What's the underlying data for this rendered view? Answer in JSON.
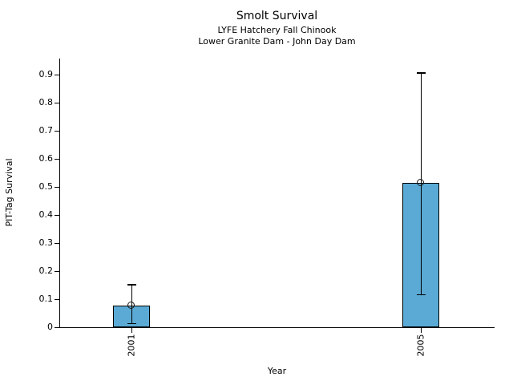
{
  "chart_data": {
    "type": "bar",
    "title": "Smolt Survival",
    "subtitle_line1": "LYFE Hatchery Fall Chinook",
    "subtitle_line2": "Lower Granite Dam - John Day Dam",
    "xlabel": "Year",
    "ylabel": "PIT-Tag Survival",
    "categories": [
      "2001",
      "2005"
    ],
    "values": [
      0.077,
      0.515
    ],
    "error_bars": [
      {
        "low": 0.013,
        "high": 0.151
      },
      {
        "low": 0.115,
        "high": 0.905
      }
    ],
    "marker": "open-circle",
    "ytick_values": [
      0,
      0.1,
      0.2,
      0.3,
      0.4,
      0.5,
      0.6,
      0.7,
      0.8,
      0.9
    ],
    "ytick_labels": [
      "0",
      "0.1",
      "0.2",
      "0.3",
      "0.4",
      "0.5",
      "0.6",
      "0.7",
      "0.8",
      "0.9"
    ],
    "ylim": [
      0,
      0.957
    ],
    "grid": false,
    "legend": "none",
    "colors": {
      "bar_fill": "#5AAAD5",
      "bar_edge": "#000000",
      "error_bar": "#000000",
      "axis": "#000000",
      "text": "#000000",
      "background": "#ffffff"
    }
  }
}
